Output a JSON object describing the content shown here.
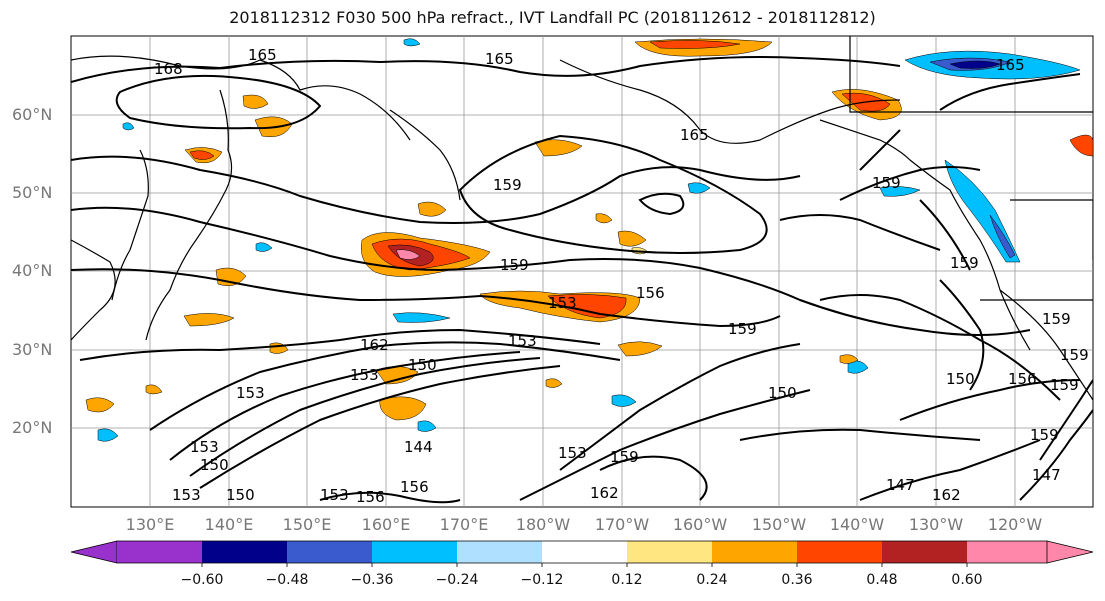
{
  "title": "2018112312 F030 500 hPa refract., IVT Landfall PC (2018112612 - 2018112812)",
  "lat_labels": [
    "60°N",
    "50°N",
    "40°N",
    "30°N",
    "20°N"
  ],
  "lon_labels": [
    "130°E",
    "140°E",
    "150°E",
    "160°E",
    "170°E",
    "180°W",
    "170°W",
    "160°W",
    "150°W",
    "140°W",
    "130°W",
    "120°W"
  ],
  "colorbar": {
    "ticks": [
      "−0.60",
      "−0.48",
      "−0.36",
      "−0.24",
      "−0.12",
      "0.12",
      "0.24",
      "0.36",
      "0.48",
      "0.60"
    ],
    "colors": [
      "#9932cc",
      "#00008b",
      "#3a5bcd",
      "#00bfff",
      "#b0e0ff",
      "#ffffff",
      "#ffe680",
      "#ffa500",
      "#ff4500",
      "#b22222",
      "#ff88aa"
    ]
  },
  "contour_labels": [
    "168",
    "165",
    "165",
    "165",
    "159",
    "159",
    "159",
    "159",
    "159",
    "153",
    "156",
    "162",
    "150",
    "153",
    "144",
    "153",
    "159",
    "162",
    "150",
    "147",
    "153",
    "156",
    "153",
    "150",
    "162",
    "147",
    "150",
    "153",
    "159",
    "156",
    "159",
    "159",
    "153",
    "150",
    "153",
    "156",
    "159",
    "165"
  ]
}
